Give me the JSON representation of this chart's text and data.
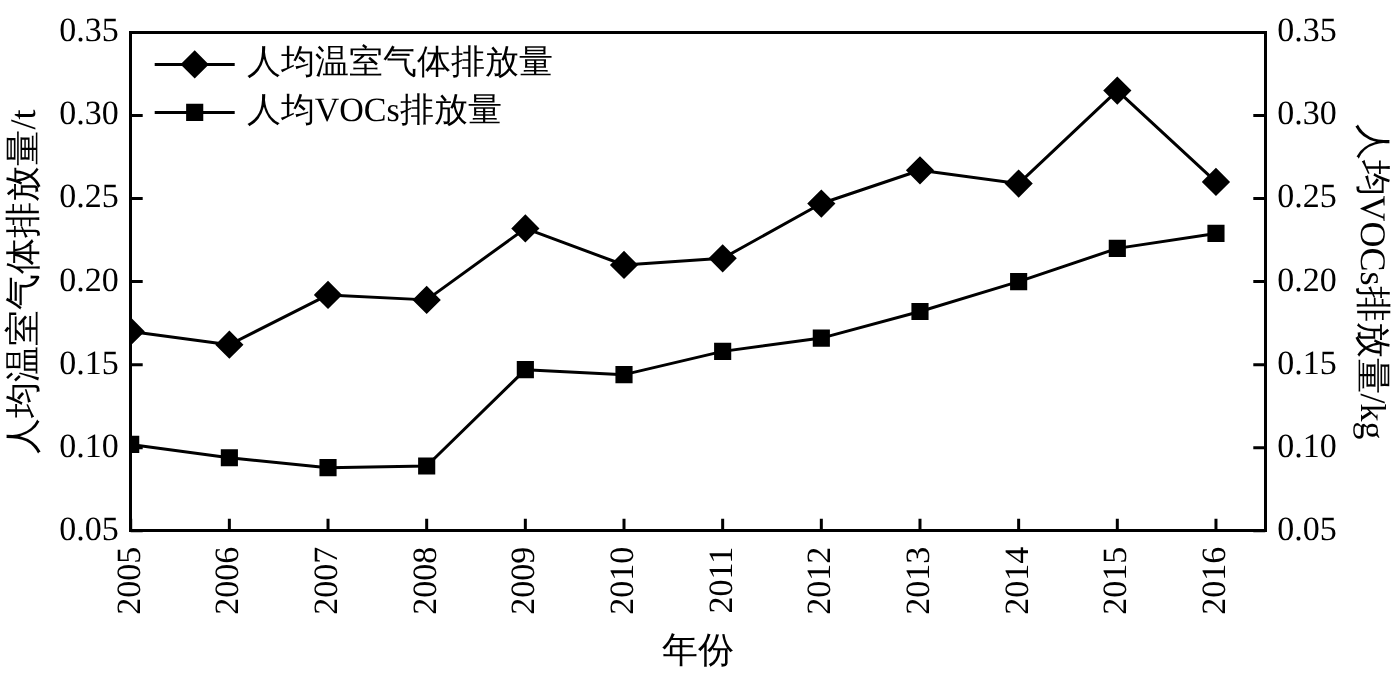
{
  "chart_data": {
    "type": "line",
    "xlabel": "年份",
    "ylabel": "人均温室气体排放量/t",
    "y2label": "人均VOCs排放量/kg",
    "x": [
      2005,
      2006,
      2007,
      2008,
      2009,
      2010,
      2011,
      2012,
      2013,
      2014,
      2015,
      2016
    ],
    "xlim": [
      2005,
      2016.5
    ],
    "xticks": [
      2005,
      2006,
      2007,
      2008,
      2009,
      2010,
      2011,
      2012,
      2013,
      2014,
      2015,
      2016
    ],
    "ylim": [
      0.05,
      0.35
    ],
    "yticks": [
      0.05,
      {
        "value": 0.1,
        "label": "0.10"
      },
      0.15,
      {
        "value": 0.2,
        "label": "0.20"
      },
      0.25,
      {
        "value": 0.3,
        "label": "0.30"
      },
      0.35
    ],
    "y2lim": [
      0.05,
      0.35
    ],
    "y2ticks": [
      0.05,
      {
        "value": 0.1,
        "label": "0.10"
      },
      0.15,
      {
        "value": 0.2,
        "label": "0.20"
      },
      0.25,
      {
        "value": 0.3,
        "label": "0.30"
      },
      0.35
    ],
    "series": [
      {
        "name": "人均温室气体排放量",
        "color": "#000000",
        "marker": "diamond",
        "values": [
          0.17,
          0.162,
          0.192,
          0.189,
          0.232,
          0.21,
          0.214,
          0.247,
          0.267,
          0.259,
          0.315,
          0.26
        ]
      },
      {
        "name": "人均VOCs排放量",
        "color": "#000000",
        "marker": "square",
        "axis": "y2",
        "values": [
          0.102,
          0.094,
          0.088,
          0.089,
          0.147,
          0.144,
          0.158,
          0.166,
          0.182,
          0.2,
          0.22,
          0.229
        ]
      }
    ],
    "grid": false,
    "legend": "top left",
    "line_style": "solid"
  }
}
